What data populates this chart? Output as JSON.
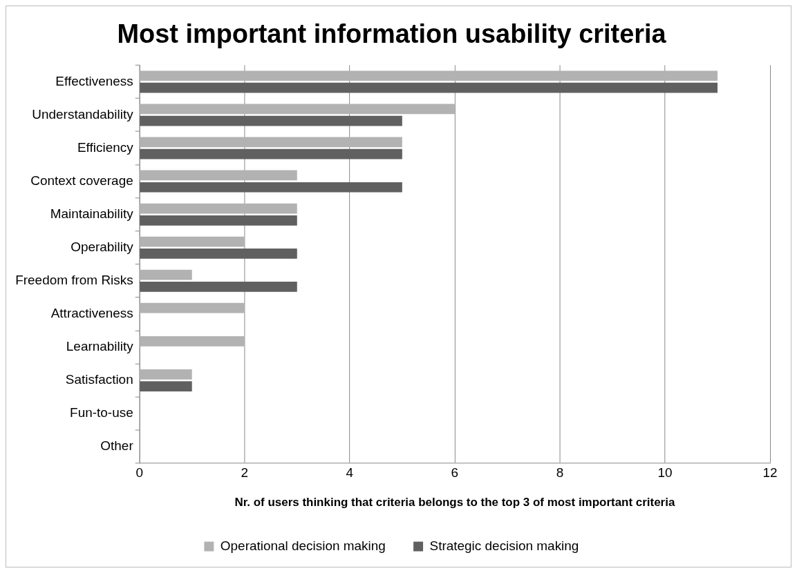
{
  "chart_data": {
    "type": "bar",
    "orientation": "horizontal",
    "title": "Most important information usability criteria",
    "xlabel": "Nr. of users thinking that criteria belongs to the top 3 of most important criteria",
    "categories": [
      "Effectiveness",
      "Understandability",
      "Efficiency",
      "Context coverage",
      "Maintainability",
      "Operability",
      "Freedom from Risks",
      "Attractiveness",
      "Learnability",
      "Satisfaction",
      "Fun-to-use",
      "Other"
    ],
    "series": [
      {
        "name": "Operational decision making",
        "color": "#b2b2b2",
        "values": [
          11,
          6,
          5,
          3,
          3,
          2,
          1,
          2,
          2,
          1,
          0,
          0
        ]
      },
      {
        "name": "Strategic decision making",
        "color": "#606060",
        "values": [
          11,
          5,
          5,
          5,
          3,
          3,
          3,
          0,
          0,
          1,
          0,
          0
        ]
      }
    ],
    "xlim": [
      0,
      12
    ],
    "xticks": [
      0,
      2,
      4,
      6,
      8,
      10,
      12
    ],
    "grid": "x",
    "legend": "bottom"
  }
}
